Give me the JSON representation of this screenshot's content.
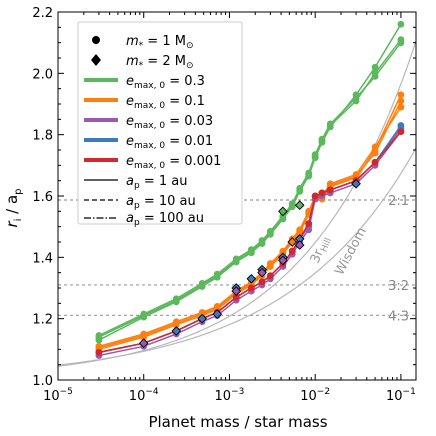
{
  "chart_data": {
    "type": "line",
    "xlabel": "Planet mass / star mass",
    "ylabel_main": "r",
    "ylabel_sub1": "i",
    "ylabel_mid": " / a",
    "ylabel_sub2": "p",
    "x_scale": "log",
    "xlim": [
      1e-05,
      0.15
    ],
    "ylim": [
      1.0,
      2.2
    ],
    "x_ticks": [
      {
        "value": 1e-05,
        "base": "10",
        "exp": "−5"
      },
      {
        "value": 0.0001,
        "base": "10",
        "exp": "−4"
      },
      {
        "value": 0.001,
        "base": "10",
        "exp": "−3"
      },
      {
        "value": 0.01,
        "base": "10",
        "exp": "−2"
      },
      {
        "value": 0.1,
        "base": "10",
        "exp": "−1"
      }
    ],
    "y_ticks": [
      "1.0",
      "1.2",
      "1.4",
      "1.6",
      "1.8",
      "2.0",
      "2.2"
    ],
    "resonances": [
      {
        "label": "2:1",
        "value": 1.587
      },
      {
        "label": "3:2",
        "value": 1.31
      },
      {
        "label": "4:3",
        "value": 1.211
      }
    ],
    "curve_labels": {
      "hill_main": "3r",
      "hill_sub": "Hill",
      "wisdom": "Wisdom"
    },
    "legend": {
      "star_mass": [
        {
          "marker": "circle",
          "prefix": "m",
          "sub": "*",
          "text": " = 1 M",
          "suffix": "⊙"
        },
        {
          "marker": "diamond",
          "prefix": "m",
          "sub": "*",
          "text": " = 2 M",
          "suffix": "⊙"
        }
      ],
      "emax": [
        {
          "color": "#5cb85c",
          "prefix": "e",
          "sub": "max, 0",
          "text": " = 0.3"
        },
        {
          "color": "#ff7f0e",
          "prefix": "e",
          "sub": "max, 0",
          "text": " = 0.1"
        },
        {
          "color": "#9b59b6",
          "prefix": "e",
          "sub": "max, 0",
          "text": " = 0.03"
        },
        {
          "color": "#3a7bbf",
          "prefix": "e",
          "sub": "max, 0",
          "text": " = 0.01"
        },
        {
          "color": "#d62728",
          "prefix": "e",
          "sub": "max, 0",
          "text": " = 0.001"
        }
      ],
      "ap": [
        {
          "dash": "solid",
          "prefix": "a",
          "sub": "p",
          "text": " = 1 au"
        },
        {
          "dash": "dashed",
          "prefix": "a",
          "sub": "p",
          "text": " = 10 au"
        },
        {
          "dash": "dashdot",
          "prefix": "a",
          "sub": "p",
          "text": " = 100 au"
        }
      ]
    },
    "x_masses": [
      3e-05,
      0.0001,
      0.00024,
      0.00048,
      0.00072,
      0.0012,
      0.0018,
      0.0024,
      0.003,
      0.0042,
      0.0054,
      0.0066,
      0.0084,
      0.01,
      0.012,
      0.015,
      0.03,
      0.05,
      0.1
    ],
    "series": [
      {
        "color": "#5cb85c",
        "y": [
          1.14,
          1.21,
          1.26,
          1.31,
          1.34,
          1.39,
          1.42,
          1.45,
          1.48,
          1.53,
          1.57,
          1.62,
          1.67,
          1.73,
          1.78,
          1.83,
          1.91,
          2.0,
          2.11
        ]
      },
      {
        "color": "#5cb85c",
        "y": [
          1.13,
          1.205,
          1.255,
          1.305,
          1.335,
          1.385,
          1.415,
          1.445,
          1.475,
          1.525,
          1.565,
          1.615,
          1.665,
          1.725,
          1.775,
          1.825,
          1.93,
          2.02,
          2.16
        ]
      },
      {
        "color": "#5cb85c",
        "y": [
          1.145,
          1.215,
          1.265,
          1.315,
          1.345,
          1.395,
          1.425,
          1.455,
          1.485,
          1.535,
          1.575,
          1.625,
          1.675,
          1.735,
          1.785,
          1.835,
          1.92,
          1.99,
          2.1
        ]
      },
      {
        "color": "#ff7f0e",
        "y": [
          1.11,
          1.15,
          1.19,
          1.22,
          1.24,
          1.29,
          1.32,
          1.35,
          1.38,
          1.42,
          1.46,
          1.49,
          1.55,
          1.6,
          1.6,
          1.64,
          1.67,
          1.76,
          1.89
        ]
      },
      {
        "color": "#ff7f0e",
        "y": [
          1.1,
          1.14,
          1.18,
          1.21,
          1.23,
          1.28,
          1.31,
          1.34,
          1.37,
          1.41,
          1.45,
          1.48,
          1.54,
          1.59,
          1.59,
          1.63,
          1.66,
          1.75,
          1.93
        ]
      },
      {
        "color": "#ff7f0e",
        "y": [
          1.105,
          1.145,
          1.185,
          1.215,
          1.235,
          1.285,
          1.315,
          1.345,
          1.375,
          1.415,
          1.455,
          1.485,
          1.545,
          1.595,
          1.595,
          1.635,
          1.665,
          1.74,
          1.91
        ]
      },
      {
        "color": "#9b59b6",
        "y": [
          1.09,
          1.12,
          1.16,
          1.2,
          1.22,
          1.27,
          1.3,
          1.32,
          1.34,
          1.38,
          1.42,
          1.46,
          1.5,
          1.6,
          1.61,
          1.62,
          1.65,
          1.71,
          1.82
        ]
      },
      {
        "color": "#9b59b6",
        "y": [
          1.08,
          1.11,
          1.15,
          1.19,
          1.21,
          1.26,
          1.29,
          1.31,
          1.33,
          1.37,
          1.41,
          1.45,
          1.49,
          1.59,
          1.6,
          1.61,
          1.64,
          1.7,
          1.81
        ]
      },
      {
        "color": "#3a7bbf",
        "y": [
          1.09,
          1.12,
          1.16,
          1.2,
          1.22,
          1.27,
          1.3,
          1.32,
          1.34,
          1.38,
          1.42,
          1.46,
          1.51,
          1.6,
          1.61,
          1.62,
          1.65,
          1.71,
          1.83
        ]
      },
      {
        "color": "#d62728",
        "y": [
          1.09,
          1.12,
          1.16,
          1.2,
          1.22,
          1.27,
          1.3,
          1.32,
          1.34,
          1.38,
          1.42,
          1.46,
          1.51,
          1.6,
          1.61,
          1.62,
          1.65,
          1.71,
          1.81
        ]
      }
    ],
    "diamonds": [
      {
        "color": "#3a7bbf",
        "x": [
          0.00024,
          0.00048,
          0.00072,
          0.0012,
          0.0018,
          0.0024,
          0.0042,
          0.0066,
          0.03
        ],
        "y": [
          1.16,
          1.2,
          1.215,
          1.3,
          1.33,
          1.36,
          1.4,
          1.46,
          1.64
        ]
      },
      {
        "color": "#9b59b6",
        "x": [
          0.0001,
          0.0012,
          0.0024,
          0.0042,
          0.0066
        ],
        "y": [
          1.12,
          1.29,
          1.35,
          1.39,
          1.44
        ]
      },
      {
        "color": "#5cb85c",
        "x": [
          0.0042,
          0.0066
        ],
        "y": [
          1.55,
          1.57
        ]
      },
      {
        "color": "#ff7f0e",
        "x": [
          0.0054
        ],
        "y": [
          1.45
        ]
      }
    ]
  }
}
